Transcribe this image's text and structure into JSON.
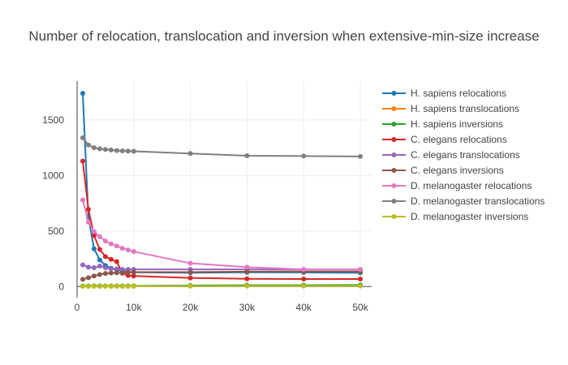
{
  "chart_data": {
    "type": "line",
    "title": "Number of relocation, translocation and inversion when extensive-min-size increase",
    "xlabel": "",
    "ylabel": "",
    "xlim": [
      0,
      52000
    ],
    "ylim": [
      -100,
      1850
    ],
    "x_ticks": [
      {
        "value": 0,
        "label": "0"
      },
      {
        "value": 10000,
        "label": "10k"
      },
      {
        "value": 20000,
        "label": "20k"
      },
      {
        "value": 30000,
        "label": "30k"
      },
      {
        "value": 40000,
        "label": "40k"
      },
      {
        "value": 50000,
        "label": "50k"
      }
    ],
    "y_ticks": [
      {
        "value": 0,
        "label": "0"
      },
      {
        "value": 500,
        "label": "500"
      },
      {
        "value": 1000,
        "label": "1000"
      },
      {
        "value": 1500,
        "label": "1500"
      }
    ],
    "grid": true,
    "legend_position": "right",
    "x": [
      1000,
      2000,
      3000,
      4000,
      5000,
      6000,
      7000,
      8000,
      9000,
      10000,
      20000,
      30000,
      40000,
      50000
    ],
    "series": [
      {
        "name": "H. sapiens relocations",
        "color": "#1f77b4",
        "values": [
          1740,
          620,
          340,
          240,
          190,
          165,
          150,
          140,
          133,
          128,
          125,
          128,
          127,
          124
        ]
      },
      {
        "name": "H. sapiens translocations",
        "color": "#ff7f0e",
        "values": [
          3,
          3,
          3,
          3,
          3,
          3,
          3,
          3,
          3,
          3,
          5,
          8,
          8,
          8
        ]
      },
      {
        "name": "H. sapiens inversions",
        "color": "#2ca02c",
        "values": [
          6,
          6,
          6,
          6,
          6,
          6,
          6,
          6,
          6,
          6,
          10,
          12,
          12,
          14
        ]
      },
      {
        "name": "C. elegans relocations",
        "color": "#d62728",
        "values": [
          1130,
          695,
          460,
          335,
          270,
          245,
          225,
          120,
          100,
          95,
          78,
          70,
          68,
          68
        ]
      },
      {
        "name": "C. elegans translocations",
        "color": "#9467bd",
        "values": [
          195,
          175,
          170,
          185,
          170,
          160,
          158,
          155,
          155,
          155,
          155,
          155,
          152,
          152
        ]
      },
      {
        "name": "C. elegans inversions",
        "color": "#8c564b",
        "values": [
          65,
          80,
          95,
          108,
          118,
          122,
          125,
          122,
          128,
          130,
          130,
          135,
          135,
          135
        ]
      },
      {
        "name": "D. melanogaster relocations",
        "color": "#e377c2",
        "values": [
          780,
          580,
          495,
          450,
          410,
          385,
          365,
          345,
          330,
          315,
          210,
          175,
          155,
          155
        ]
      },
      {
        "name": "D. melanogaster translocations",
        "color": "#7f7f7f",
        "values": [
          1340,
          1275,
          1250,
          1240,
          1235,
          1230,
          1225,
          1222,
          1220,
          1218,
          1198,
          1178,
          1175,
          1172
        ]
      },
      {
        "name": "D. melanogaster inversions",
        "color": "#bcbd22",
        "values": [
          2,
          2,
          2,
          2,
          2,
          2,
          2,
          2,
          2,
          2,
          4,
          5,
          5,
          5
        ]
      }
    ]
  }
}
